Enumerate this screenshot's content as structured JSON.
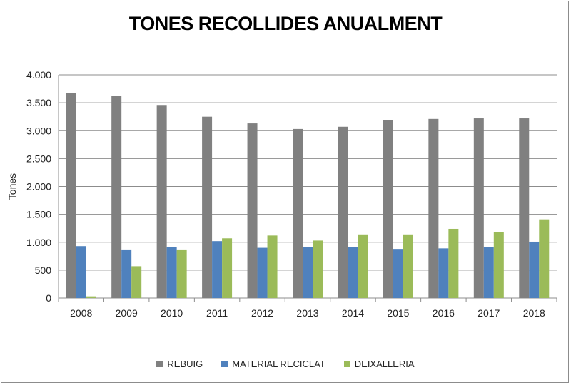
{
  "chart_data": {
    "type": "bar",
    "title": "TONES RECOLLIDES ANUALMENT",
    "xlabel": "",
    "ylabel": "Tones",
    "ylim": [
      0,
      4000
    ],
    "yticks": [
      0,
      500,
      1000,
      1500,
      2000,
      2500,
      3000,
      3500,
      4000
    ],
    "ytick_labels": [
      "0",
      "500",
      "1.000",
      "1.500",
      "2.000",
      "2.500",
      "3.000",
      "3.500",
      "4.000"
    ],
    "grid": true,
    "legend_position": "bottom",
    "categories": [
      "2008",
      "2009",
      "2010",
      "2011",
      "2012",
      "2013",
      "2014",
      "2015",
      "2016",
      "2017",
      "2018"
    ],
    "series": [
      {
        "name": "REBUIG",
        "color": "#808080",
        "values": [
          3680,
          3620,
          3460,
          3250,
          3130,
          3030,
          3070,
          3190,
          3210,
          3220,
          3220
        ]
      },
      {
        "name": "MATERIAL RECICLAT",
        "color": "#4f81bd",
        "values": [
          930,
          870,
          910,
          1020,
          900,
          910,
          910,
          880,
          890,
          920,
          1010
        ]
      },
      {
        "name": "DEIXALLERIA",
        "color": "#9bbb59",
        "values": [
          30,
          570,
          870,
          1070,
          1120,
          1030,
          1140,
          1140,
          1240,
          1180,
          1410
        ]
      }
    ]
  }
}
